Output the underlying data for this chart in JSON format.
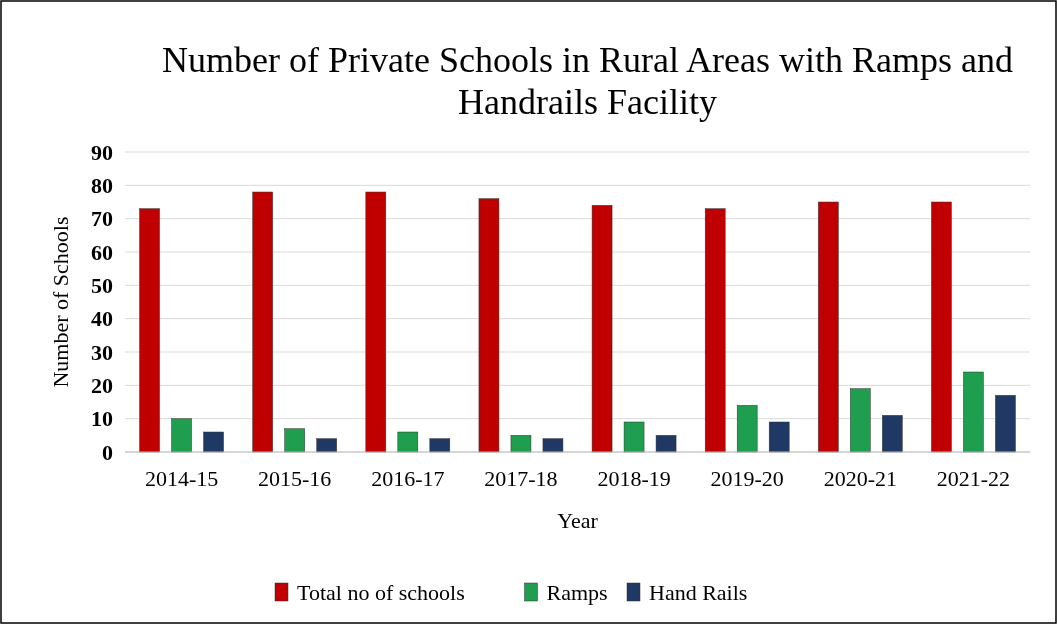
{
  "chart_data": {
    "type": "bar",
    "title": "Number of Private Schools in Rural Areas with Ramps and Handrails Facility",
    "xlabel": "Year",
    "ylabel": "Number of Schools",
    "categories": [
      "2014-15",
      "2015-16",
      "2016-17",
      "2017-18",
      "2018-19",
      "2019-20",
      "2020-21",
      "2021-22"
    ],
    "series": [
      {
        "name": "Total no of schools",
        "color": "#c00000",
        "values": [
          73,
          78,
          78,
          76,
          74,
          73,
          75,
          75
        ]
      },
      {
        "name": "Ramps",
        "color": "#1e9e4e",
        "values": [
          10,
          7,
          6,
          5,
          9,
          14,
          19,
          24
        ]
      },
      {
        "name": "Hand Rails",
        "color": "#1f3864",
        "values": [
          6,
          4,
          4,
          4,
          5,
          9,
          11,
          17
        ]
      }
    ],
    "ylim": [
      0,
      90
    ],
    "yticks": [
      0,
      10,
      20,
      30,
      40,
      50,
      60,
      70,
      80,
      90
    ],
    "grid": "y",
    "legend": "bottom"
  }
}
